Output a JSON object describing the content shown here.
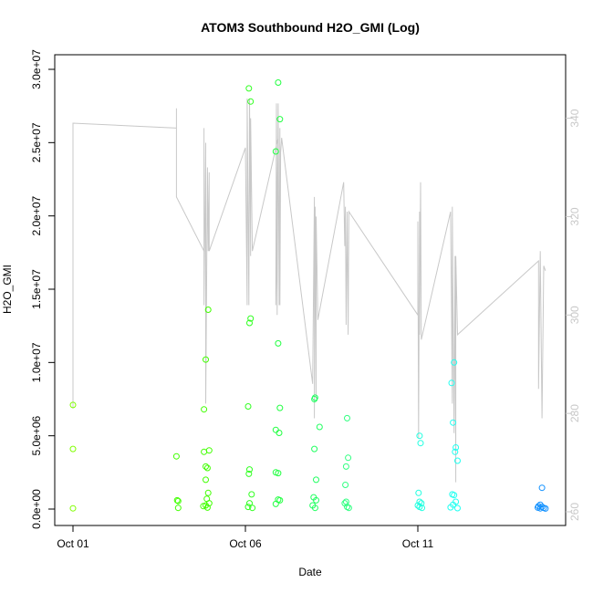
{
  "chart_data": {
    "type": "scatter",
    "title": "ATOM3 Southbound H2O_GMI (Log)",
    "xlabel": "Date",
    "ylabel": "H2O_GMI",
    "x_ticks": [
      {
        "label": "Oct 01",
        "day": 0
      },
      {
        "label": "Oct 06",
        "day": 5
      },
      {
        "label": "Oct 11",
        "day": 10
      }
    ],
    "xlim_days": [
      0,
      13.7
    ],
    "ylim": [
      0,
      30000000
    ],
    "y_ticks": [
      "0.0e+00",
      "5.0e+06",
      "1.0e+07",
      "1.5e+07",
      "2.0e+07",
      "2.5e+07",
      "3.0e+07"
    ],
    "y_tick_values": [
      0,
      5000000,
      10000000,
      15000000,
      20000000,
      25000000,
      30000000
    ],
    "y2lim": [
      260,
      344
    ],
    "y2_ticks": [
      "260",
      "280",
      "300",
      "320",
      "340"
    ],
    "y2_tick_values": [
      260,
      280,
      300,
      320,
      340
    ],
    "series_color": "#c8c8c8",
    "grid": false,
    "points": [
      {
        "x": 0.0,
        "y": 7100000,
        "color": "#80ff00"
      },
      {
        "x": 0.0,
        "y": 4100000,
        "color": "#80ff00"
      },
      {
        "x": 0.0,
        "y": 50000,
        "color": "#80ff00"
      },
      {
        "x": 3.0,
        "y": 3600000,
        "color": "#40ff00"
      },
      {
        "x": 3.02,
        "y": 600000,
        "color": "#40ff00"
      },
      {
        "x": 3.05,
        "y": 550000,
        "color": "#40ff00"
      },
      {
        "x": 3.05,
        "y": 80000,
        "color": "#40ff00"
      },
      {
        "x": 3.8,
        "y": 6800000,
        "color": "#40ff00"
      },
      {
        "x": 3.85,
        "y": 10200000,
        "color": "#40ff00"
      },
      {
        "x": 3.92,
        "y": 13600000,
        "color": "#40ff00"
      },
      {
        "x": 3.8,
        "y": 3900000,
        "color": "#40ff00"
      },
      {
        "x": 3.95,
        "y": 4000000,
        "color": "#40ff00"
      },
      {
        "x": 3.85,
        "y": 2900000,
        "color": "#40ff00"
      },
      {
        "x": 3.9,
        "y": 2800000,
        "color": "#40ff00"
      },
      {
        "x": 3.85,
        "y": 2000000,
        "color": "#40ff00"
      },
      {
        "x": 3.92,
        "y": 1100000,
        "color": "#40ff00"
      },
      {
        "x": 3.88,
        "y": 700000,
        "color": "#40ff00"
      },
      {
        "x": 3.95,
        "y": 400000,
        "color": "#40ff00"
      },
      {
        "x": 3.78,
        "y": 200000,
        "color": "#40ff00"
      },
      {
        "x": 3.85,
        "y": 250000,
        "color": "#40ff00"
      },
      {
        "x": 3.9,
        "y": 100000,
        "color": "#40ff00"
      },
      {
        "x": 5.1,
        "y": 28700000,
        "color": "#30ff20"
      },
      {
        "x": 5.15,
        "y": 27800000,
        "color": "#30ff20"
      },
      {
        "x": 5.15,
        "y": 13000000,
        "color": "#30ff20"
      },
      {
        "x": 5.12,
        "y": 12700000,
        "color": "#30ff20"
      },
      {
        "x": 5.08,
        "y": 7000000,
        "color": "#30ff20"
      },
      {
        "x": 5.12,
        "y": 2700000,
        "color": "#30ff20"
      },
      {
        "x": 5.1,
        "y": 2400000,
        "color": "#30ff20"
      },
      {
        "x": 5.18,
        "y": 1000000,
        "color": "#30ff20"
      },
      {
        "x": 5.12,
        "y": 400000,
        "color": "#30ff20"
      },
      {
        "x": 5.08,
        "y": 150000,
        "color": "#30ff20"
      },
      {
        "x": 5.2,
        "y": 80000,
        "color": "#30ff20"
      },
      {
        "x": 5.95,
        "y": 29100000,
        "color": "#20ff40"
      },
      {
        "x": 6.0,
        "y": 26600000,
        "color": "#20ff40"
      },
      {
        "x": 5.88,
        "y": 24400000,
        "color": "#20ff40"
      },
      {
        "x": 5.95,
        "y": 11300000,
        "color": "#20ff40"
      },
      {
        "x": 6.0,
        "y": 6900000,
        "color": "#20ff40"
      },
      {
        "x": 5.88,
        "y": 5400000,
        "color": "#20ff40"
      },
      {
        "x": 5.98,
        "y": 5200000,
        "color": "#20ff40"
      },
      {
        "x": 5.88,
        "y": 2500000,
        "color": "#20ff40"
      },
      {
        "x": 5.95,
        "y": 2450000,
        "color": "#20ff40"
      },
      {
        "x": 5.95,
        "y": 650000,
        "color": "#20ff40"
      },
      {
        "x": 6.0,
        "y": 600000,
        "color": "#20ff40"
      },
      {
        "x": 5.88,
        "y": 350000,
        "color": "#20ff40"
      },
      {
        "x": 7.02,
        "y": 7600000,
        "color": "#20ff60"
      },
      {
        "x": 7.0,
        "y": 7500000,
        "color": "#20ff60"
      },
      {
        "x": 7.15,
        "y": 5600000,
        "color": "#20ff60"
      },
      {
        "x": 7.0,
        "y": 4100000,
        "color": "#20ff60"
      },
      {
        "x": 7.05,
        "y": 2000000,
        "color": "#20ff60"
      },
      {
        "x": 6.98,
        "y": 800000,
        "color": "#20ff60"
      },
      {
        "x": 7.05,
        "y": 600000,
        "color": "#20ff60"
      },
      {
        "x": 6.95,
        "y": 250000,
        "color": "#20ff60"
      },
      {
        "x": 7.02,
        "y": 80000,
        "color": "#20ff60"
      },
      {
        "x": 7.95,
        "y": 6200000,
        "color": "#30ff80"
      },
      {
        "x": 7.98,
        "y": 3500000,
        "color": "#30ff80"
      },
      {
        "x": 7.92,
        "y": 2900000,
        "color": "#30ff80"
      },
      {
        "x": 7.9,
        "y": 1650000,
        "color": "#30ff80"
      },
      {
        "x": 7.92,
        "y": 500000,
        "color": "#30ff80"
      },
      {
        "x": 7.88,
        "y": 400000,
        "color": "#30ff80"
      },
      {
        "x": 7.95,
        "y": 150000,
        "color": "#30ff80"
      },
      {
        "x": 8.0,
        "y": 80000,
        "color": "#30ff80"
      },
      {
        "x": 10.05,
        "y": 5000000,
        "color": "#20ffe0"
      },
      {
        "x": 10.08,
        "y": 4500000,
        "color": "#20ffe0"
      },
      {
        "x": 10.02,
        "y": 1100000,
        "color": "#20ffe0"
      },
      {
        "x": 10.05,
        "y": 500000,
        "color": "#20ffe0"
      },
      {
        "x": 10.1,
        "y": 400000,
        "color": "#20ffe0"
      },
      {
        "x": 10.0,
        "y": 250000,
        "color": "#20ffe0"
      },
      {
        "x": 10.05,
        "y": 150000,
        "color": "#20ffe0"
      },
      {
        "x": 10.12,
        "y": 80000,
        "color": "#20ffe0"
      },
      {
        "x": 11.05,
        "y": 10000000,
        "color": "#20fff0"
      },
      {
        "x": 10.98,
        "y": 8600000,
        "color": "#20fff0"
      },
      {
        "x": 11.02,
        "y": 5900000,
        "color": "#20fff0"
      },
      {
        "x": 11.1,
        "y": 4200000,
        "color": "#20fff0"
      },
      {
        "x": 11.08,
        "y": 3900000,
        "color": "#20fff0"
      },
      {
        "x": 11.15,
        "y": 3300000,
        "color": "#20fff0"
      },
      {
        "x": 11.0,
        "y": 1000000,
        "color": "#20fff0"
      },
      {
        "x": 11.05,
        "y": 950000,
        "color": "#20fff0"
      },
      {
        "x": 11.1,
        "y": 500000,
        "color": "#20fff0"
      },
      {
        "x": 11.02,
        "y": 300000,
        "color": "#20fff0"
      },
      {
        "x": 10.95,
        "y": 120000,
        "color": "#20fff0"
      },
      {
        "x": 11.15,
        "y": 60000,
        "color": "#20fff0"
      },
      {
        "x": 13.6,
        "y": 1450000,
        "color": "#1090ff"
      },
      {
        "x": 13.55,
        "y": 300000,
        "color": "#1090ff"
      },
      {
        "x": 13.5,
        "y": 200000,
        "color": "#1090ff"
      },
      {
        "x": 13.6,
        "y": 150000,
        "color": "#1090ff"
      },
      {
        "x": 13.48,
        "y": 100000,
        "color": "#1090ff"
      },
      {
        "x": 13.65,
        "y": 80000,
        "color": "#1090ff"
      },
      {
        "x": 13.55,
        "y": 50000,
        "color": "#1090ff"
      },
      {
        "x": 13.7,
        "y": 40000,
        "color": "#1090ff"
      }
    ],
    "line_y2": [
      {
        "x": 0.0,
        "y": 281
      },
      {
        "x": 0.0,
        "y": 339
      },
      {
        "x": 3.0,
        "y": 338
      },
      {
        "x": 3.0,
        "y": 330
      },
      {
        "x": 3.0,
        "y": 342
      },
      {
        "x": 3.0,
        "y": 324
      },
      {
        "x": 3.8,
        "y": 313
      },
      {
        "x": 3.8,
        "y": 338
      },
      {
        "x": 3.8,
        "y": 302
      },
      {
        "x": 3.85,
        "y": 335
      },
      {
        "x": 3.85,
        "y": 282
      },
      {
        "x": 3.9,
        "y": 330
      },
      {
        "x": 3.92,
        "y": 313
      },
      {
        "x": 3.95,
        "y": 329
      },
      {
        "x": 3.95,
        "y": 313
      },
      {
        "x": 5.0,
        "y": 334
      },
      {
        "x": 5.05,
        "y": 302
      },
      {
        "x": 5.05,
        "y": 344
      },
      {
        "x": 5.1,
        "y": 302
      },
      {
        "x": 5.12,
        "y": 344
      },
      {
        "x": 5.15,
        "y": 312
      },
      {
        "x": 5.15,
        "y": 340
      },
      {
        "x": 5.2,
        "y": 313
      },
      {
        "x": 5.95,
        "y": 336
      },
      {
        "x": 5.88,
        "y": 302
      },
      {
        "x": 5.9,
        "y": 343
      },
      {
        "x": 5.92,
        "y": 300
      },
      {
        "x": 5.95,
        "y": 343
      },
      {
        "x": 5.98,
        "y": 302
      },
      {
        "x": 6.0,
        "y": 338
      },
      {
        "x": 6.0,
        "y": 302
      },
      {
        "x": 6.02,
        "y": 333
      },
      {
        "x": 6.05,
        "y": 336
      },
      {
        "x": 6.95,
        "y": 286
      },
      {
        "x": 7.0,
        "y": 324
      },
      {
        "x": 7.0,
        "y": 279
      },
      {
        "x": 7.02,
        "y": 322
      },
      {
        "x": 7.05,
        "y": 283
      },
      {
        "x": 7.05,
        "y": 320
      },
      {
        "x": 7.1,
        "y": 299
      },
      {
        "x": 7.85,
        "y": 327
      },
      {
        "x": 7.88,
        "y": 314
      },
      {
        "x": 7.9,
        "y": 322
      },
      {
        "x": 7.92,
        "y": 298
      },
      {
        "x": 7.95,
        "y": 321
      },
      {
        "x": 7.98,
        "y": 296
      },
      {
        "x": 8.0,
        "y": 321
      },
      {
        "x": 10.0,
        "y": 300
      },
      {
        "x": 10.0,
        "y": 319
      },
      {
        "x": 10.02,
        "y": 275
      },
      {
        "x": 10.05,
        "y": 321
      },
      {
        "x": 10.05,
        "y": 296
      },
      {
        "x": 10.08,
        "y": 327
      },
      {
        "x": 10.1,
        "y": 295
      },
      {
        "x": 10.95,
        "y": 321
      },
      {
        "x": 11.0,
        "y": 282
      },
      {
        "x": 11.0,
        "y": 322
      },
      {
        "x": 11.05,
        "y": 276
      },
      {
        "x": 11.08,
        "y": 312
      },
      {
        "x": 11.1,
        "y": 266
      },
      {
        "x": 11.1,
        "y": 312
      },
      {
        "x": 11.15,
        "y": 296
      },
      {
        "x": 13.5,
        "y": 311
      },
      {
        "x": 13.5,
        "y": 285
      },
      {
        "x": 13.55,
        "y": 313
      },
      {
        "x": 13.6,
        "y": 279
      },
      {
        "x": 13.65,
        "y": 310
      },
      {
        "x": 13.7,
        "y": 309
      }
    ]
  }
}
